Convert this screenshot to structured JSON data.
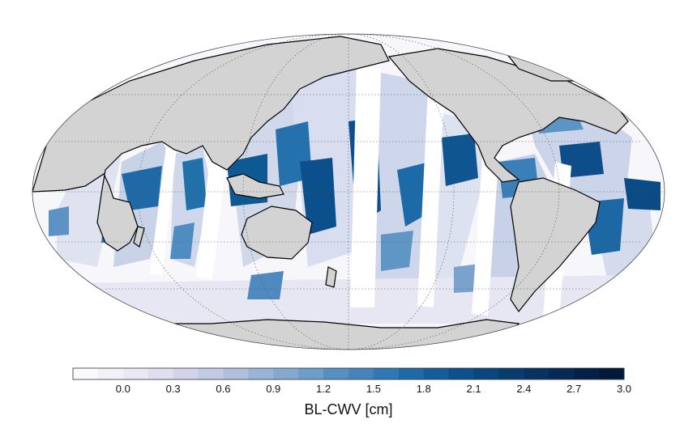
{
  "map": {
    "projection": "mollweide",
    "land_color": "#d3d3d3",
    "ocean_empty_color": "#ffffff",
    "coastline_color": "#000000",
    "graticule": "dotted"
  },
  "colorbar": {
    "label": "BL-CWV [cm]",
    "tick_labels": [
      "0.0",
      "0.3",
      "0.6",
      "0.9",
      "1.2",
      "1.5",
      "1.8",
      "2.1",
      "2.4",
      "2.7",
      "3.0"
    ],
    "min": -0.3,
    "max": 3.0,
    "step": 0.15,
    "colors": [
      "#fbf9fd",
      "#f3f1f8",
      "#e9e8f3",
      "#dfdfef",
      "#d2d5ea",
      "#c1cbe4",
      "#aec0dd",
      "#99b4d6",
      "#84a8cf",
      "#6d9dc9",
      "#5690c2",
      "#4484bb",
      "#2f78b3",
      "#1c6aa8",
      "#115d9b",
      "#0d518c",
      "#0a467d",
      "#073c6e",
      "#063362",
      "#042a55",
      "#032148",
      "#02193b"
    ]
  }
}
